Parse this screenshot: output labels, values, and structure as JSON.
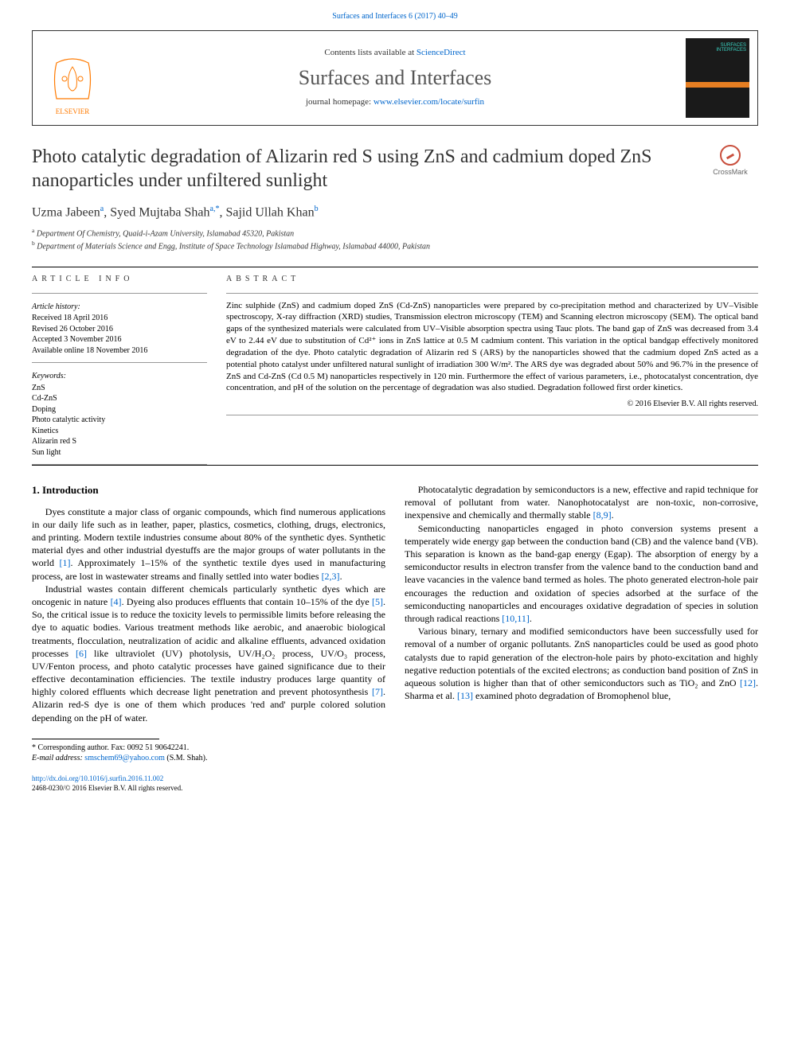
{
  "header": {
    "citation": "Surfaces and Interfaces 6 (2017) 40–49",
    "contents_prefix": "Contents lists available at ",
    "contents_link": "ScienceDirect",
    "journal_name": "Surfaces and Interfaces",
    "homepage_prefix": "journal homepage: ",
    "homepage_url": "www.elsevier.com/locate/surfin"
  },
  "article": {
    "title": "Photo catalytic degradation of Alizarin red S using ZnS and cadmium doped ZnS nanoparticles under unfiltered sunlight",
    "crossmark_label": "CrossMark",
    "authors_html": "Uzma Jabeen<sup>a</sup>, Syed Mujtaba Shah<sup>a,*</sup>, Sajid Ullah Khan<sup>b</sup>",
    "affiliations": {
      "a": "Department Of Chemistry, Quaid-i-Azam University, Islamabad 45320, Pakistan",
      "b": "Department of Materials Science and Engg, Institute of Space Technology Islamabad Highway, Islamabad 44000, Pakistan"
    }
  },
  "info": {
    "heading": "ARTICLE INFO",
    "history_head": "Article history:",
    "history": [
      "Received 18 April 2016",
      "Revised 26 October 2016",
      "Accepted 3 November 2016",
      "Available online 18 November 2016"
    ],
    "keywords_head": "Keywords:",
    "keywords": [
      "ZnS",
      "Cd-ZnS",
      "Doping",
      "Photo catalytic activity",
      "Kinetics",
      "Alizarin red S",
      "Sun light"
    ]
  },
  "abstract": {
    "heading": "ABSTRACT",
    "text": "Zinc sulphide (ZnS) and cadmium doped ZnS (Cd-ZnS) nanoparticles were prepared by co-precipitation method and characterized by UV–Visible spectroscopy, X-ray diffraction (XRD) studies, Transmission electron microscopy (TEM) and Scanning electron microscopy (SEM). The optical band gaps of the synthesized materials were calculated from UV–Visible absorption spectra using Tauc plots. The band gap of ZnS was decreased from 3.4 eV to 2.44 eV due to substitution of Cd²⁺ ions in ZnS lattice at 0.5 M cadmium content. This variation in the optical bandgap effectively monitored degradation of the dye. Photo catalytic degradation of Alizarin red S (ARS) by the nanoparticles showed that the cadmium doped ZnS acted as a potential photo catalyst under unfiltered natural sunlight of irradiation 300 W/m². The ARS dye was degraded about 50% and 96.7% in the presence of ZnS and Cd-ZnS (Cd 0.5 M) nanoparticles respectively in 120 min. Furthermore the effect of various parameters, i.e., photocatalyst concentration, dye concentration, and pH of the solution on the percentage of degradation was also studied. Degradation followed first order kinetics.",
    "copyright": "© 2016 Elsevier B.V. All rights reserved."
  },
  "body": {
    "section_heading": "1. Introduction",
    "p1": "Dyes constitute a major class of organic compounds, which find numerous applications in our daily life such as in leather, paper, plastics, cosmetics, clothing, drugs, electronics, and printing. Modern textile industries consume about 80% of the synthetic dyes. Synthetic material dyes and other industrial dyestuffs are the major groups of water pollutants in the world ",
    "p1_ref1": "[1]",
    "p1b": ". Approximately 1–15% of the synthetic textile dyes used in manufacturing process, are lost in wastewater streams and finally settled into water bodies ",
    "p1_ref2": "[2,3]",
    "p1c": ".",
    "p2a": "Industrial wastes contain different chemicals particularly synthetic dyes which are oncogenic in nature ",
    "p2_ref1": "[4]",
    "p2b": ". Dyeing also produces effluents that contain 10–15% of the dye ",
    "p2_ref2": "[5]",
    "p2c": ". So, the critical issue is to reduce the toxicity levels to permissible limits before releasing the dye to aquatic bodies. Various treatment methods like aerobic, and anaerobic biological treatments, flocculation, neutralization of acidic and alkaline effluents, advanced oxidation processes ",
    "p2_ref3": "[6]",
    "p2d": " like ultraviolet (UV) photolysis, UV/H₂O₂ process, UV/O₃ process, UV/Fenton process, and photo catalytic processes have gained significance due to their effective decontamination efficiencies. The textile industry produces large quantity of highly colored effluents which decrease light penetration and prevent photosynthesis ",
    "p2_ref4": "[7]",
    "p2e": ". Alizarin red-S dye is one of them which produces 'red and' purple colored solution depending on the pH of water.",
    "p3a": "Photocatalytic degradation by semiconductors is a new, effective and rapid technique for removal of pollutant from water. Nanophotocatalyst are non-toxic, non-corrosive, inexpensive and chemically and thermally stable ",
    "p3_ref1": "[8,9]",
    "p3b": ".",
    "p4a": "Semiconducting nanoparticles engaged in photo conversion systems present a temperately wide energy gap between the conduction band (CB) and the valence band (VB). This separation is known as the band-gap energy (Egap). The absorption of energy by a semiconductor results in electron transfer from the valence band to the conduction band and leave vacancies in the valence band termed as holes. The photo generated electron-hole pair encourages the reduction and oxidation of species adsorbed at the surface of the semiconducting nanoparticles and encourages oxidative degradation of species in solution through radical reactions ",
    "p4_ref1": "[10,11]",
    "p4b": ".",
    "p5a": "Various binary, ternary and modified semiconductors have been successfully used for removal of a number of organic pollutants. ZnS nanoparticles could be used as good photo catalysts due to rapid generation of the electron-hole pairs by photo-excitation and highly negative reduction potentials of the excited electrons; as conduction band position of ZnS in aqueous solution is higher than that of other semiconductors such as TiO₂ and ZnO ",
    "p5_ref1": "[12]",
    "p5b": ". Sharma et al. ",
    "p5_ref2": "[13]",
    "p5c": " examined photo degradation of Bromophenol blue,"
  },
  "footer": {
    "corr": "* Corresponding author. Fax: 0092 51 90642241.",
    "email_label": "E-mail address: ",
    "email": "smschem69@yahoo.com",
    "email_suffix": " (S.M. Shah).",
    "doi": "http://dx.doi.org/10.1016/j.surfin.2016.11.002",
    "issn_line": "2468-0230/© 2016 Elsevier B.V. All rights reserved."
  },
  "colors": {
    "link": "#0066cc",
    "text": "#000000",
    "muted": "#555555",
    "cover_accent": "#e67e22",
    "cover_text": "#3bd6c6",
    "crossmark": "#c94f3d",
    "elsevier_orange": "#ff7a00"
  }
}
